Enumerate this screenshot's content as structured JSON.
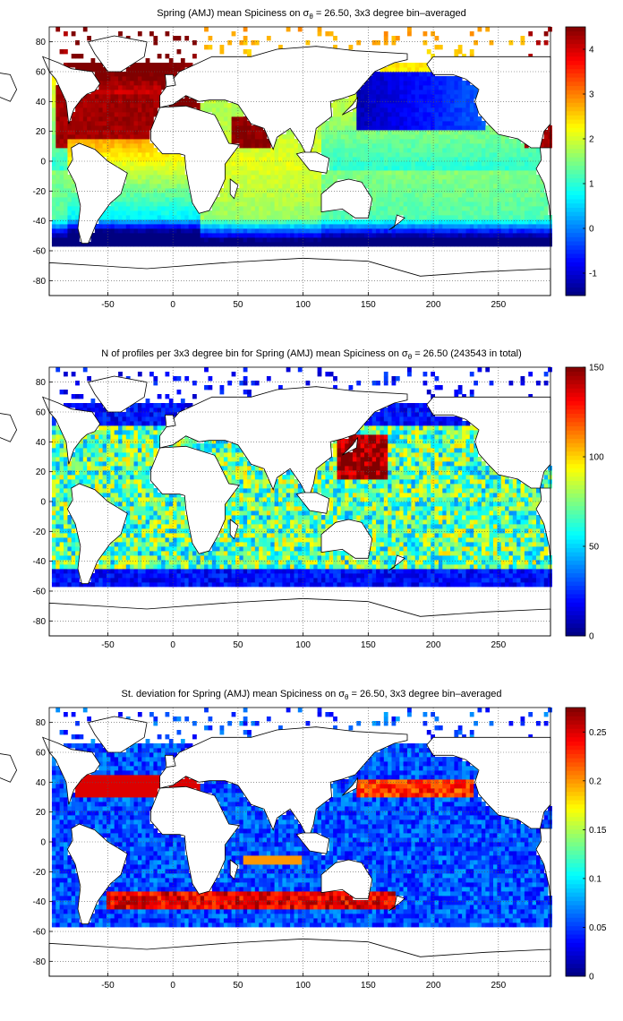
{
  "colors": {
    "land": "#ffffff",
    "coastline": "#000000",
    "grid": "#555555",
    "colormap": "jet"
  },
  "chart_data": [
    {
      "type": "heatmap",
      "title_main": "Spring (AMJ) mean Spiciness on σ",
      "title_sub": "θ",
      "title_rest": " = 26.50, 3x3 degree bin–averaged",
      "xticks": [
        "-50",
        "0",
        "50",
        "100",
        "150",
        "200",
        "250"
      ],
      "yticks": [
        "80",
        "60",
        "40",
        "20",
        "0",
        "-20",
        "-40",
        "-60",
        "-80"
      ],
      "xlim": [
        -95,
        290
      ],
      "ylim": [
        -90,
        90
      ],
      "colorbar": {
        "min": -1.5,
        "max": 4.5,
        "ticks": [
          "4",
          "3",
          "2",
          "1",
          "0",
          "-1"
        ]
      },
      "grid": true,
      "field": "spiciness"
    },
    {
      "type": "heatmap",
      "title_main": "N of profiles per 3x3 degree bin for Spring (AMJ) mean Spiciness on σ",
      "title_sub": "θ",
      "title_rest": " = 26.50 (243543 in total)",
      "xticks": [
        "-50",
        "0",
        "50",
        "100",
        "150",
        "200",
        "250"
      ],
      "yticks": [
        "80",
        "60",
        "40",
        "20",
        "0",
        "-20",
        "-40",
        "-60",
        "-80"
      ],
      "xlim": [
        -95,
        290
      ],
      "ylim": [
        -90,
        90
      ],
      "colorbar": {
        "min": 0,
        "max": 150,
        "ticks": [
          "150",
          "100",
          "50",
          "0"
        ]
      },
      "grid": true,
      "field": "count"
    },
    {
      "type": "heatmap",
      "title_main": "St. deviation for Spring (AMJ) mean Spiciness on σ",
      "title_sub": "θ",
      "title_rest": " = 26.50, 3x3 degree bin–averaged",
      "xticks": [
        "-50",
        "0",
        "50",
        "100",
        "150",
        "200",
        "250"
      ],
      "yticks": [
        "80",
        "60",
        "40",
        "20",
        "0",
        "-20",
        "-40",
        "-60",
        "-80"
      ],
      "xlim": [
        -95,
        290
      ],
      "ylim": [
        -90,
        90
      ],
      "colorbar": {
        "min": 0,
        "max": 0.275,
        "ticks": [
          "0.25",
          "0.2",
          "0.15",
          "0.1",
          "0.05",
          "0"
        ]
      },
      "grid": true,
      "field": "std"
    }
  ]
}
